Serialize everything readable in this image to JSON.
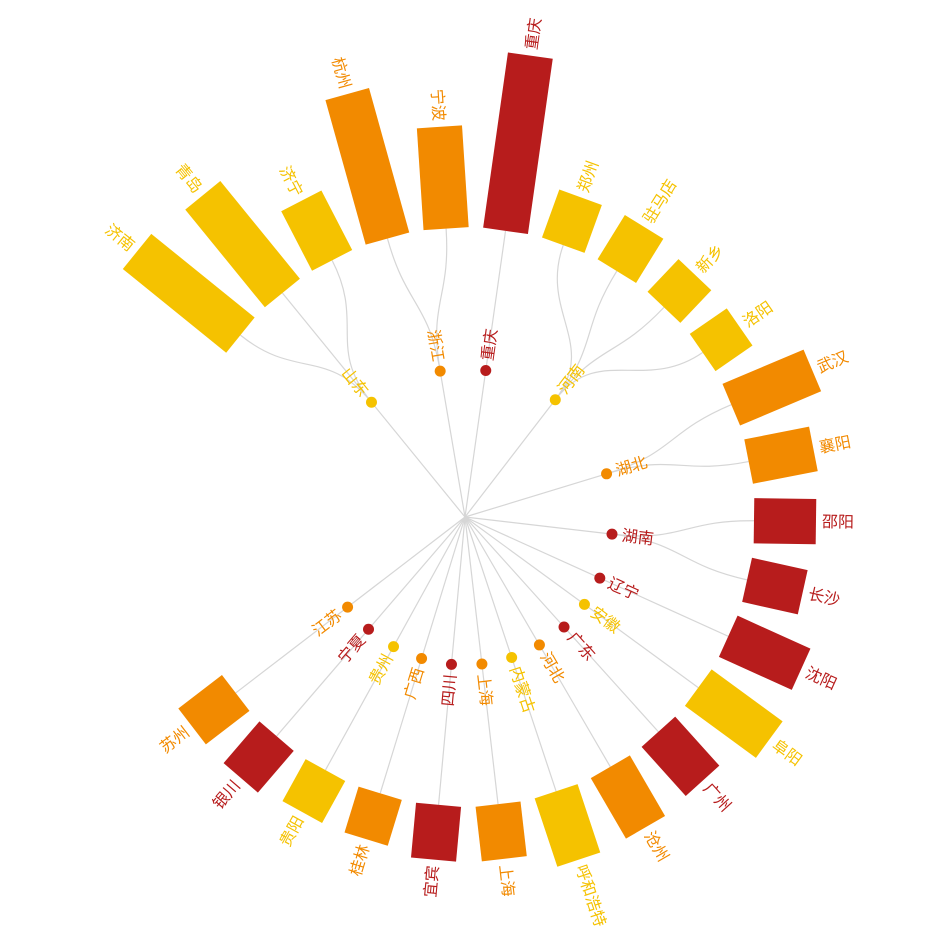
{
  "chart_data": {
    "type": "radial-bar-tree",
    "colors": {
      "yellow": "#f5c200",
      "orange": "#f28a00",
      "red": "#b71c1c",
      "link": "#d6d6d6"
    },
    "provinces": [
      {
        "name": "山东",
        "color": "yellow",
        "cities": [
          {
            "name": "济南",
            "value": 133
          },
          {
            "name": "青岛",
            "value": 126
          },
          {
            "name": "济宁",
            "value": 67
          }
        ]
      },
      {
        "name": "浙江",
        "color": "orange",
        "cities": [
          {
            "name": "杭州",
            "value": 150
          },
          {
            "name": "宁波",
            "value": 102
          }
        ]
      },
      {
        "name": "重庆",
        "color": "red",
        "cities": [
          {
            "name": "重庆",
            "value": 177
          }
        ]
      },
      {
        "name": "河南",
        "color": "yellow",
        "cities": [
          {
            "name": "郑州",
            "value": 51
          },
          {
            "name": "驻马店",
            "value": 52
          },
          {
            "name": "新乡",
            "value": 45
          },
          {
            "name": "洛阳",
            "value": 45
          }
        ]
      },
      {
        "name": "湖北",
        "color": "orange",
        "cities": [
          {
            "name": "武汉",
            "value": 88
          },
          {
            "name": "襄阳",
            "value": 66
          }
        ]
      },
      {
        "name": "湖南",
        "color": "red",
        "cities": [
          {
            "name": "邵阳",
            "value": 62
          },
          {
            "name": "长沙",
            "value": 57
          }
        ]
      },
      {
        "name": "辽宁",
        "color": "red",
        "cities": [
          {
            "name": "沈阳",
            "value": 80
          }
        ]
      },
      {
        "name": "安徽",
        "color": "yellow",
        "cities": [
          {
            "name": "阜阳",
            "value": 88
          }
        ]
      },
      {
        "name": "广东",
        "color": "red",
        "cities": [
          {
            "name": "广州",
            "value": 66
          }
        ]
      },
      {
        "name": "河北",
        "color": "orange",
        "cities": [
          {
            "name": "沧州",
            "value": 70
          }
        ]
      },
      {
        "name": "内蒙古",
        "color": "yellow",
        "cities": [
          {
            "name": "呼和浩特",
            "value": 72
          }
        ]
      },
      {
        "name": "上海",
        "color": "orange",
        "cities": [
          {
            "name": "上海",
            "value": 55
          }
        ]
      },
      {
        "name": "四川",
        "color": "red",
        "cities": [
          {
            "name": "宜宾",
            "value": 55
          }
        ]
      },
      {
        "name": "广西",
        "color": "orange",
        "cities": [
          {
            "name": "桂林",
            "value": 48
          }
        ]
      },
      {
        "name": "贵州",
        "color": "yellow",
        "cities": [
          {
            "name": "贵阳",
            "value": 48
          }
        ]
      },
      {
        "name": "宁夏",
        "color": "red",
        "cities": [
          {
            "name": "银川",
            "value": 55
          }
        ]
      },
      {
        "name": "江苏",
        "color": "orange",
        "cities": [
          {
            "name": "苏州",
            "value": 55
          }
        ]
      }
    ]
  }
}
